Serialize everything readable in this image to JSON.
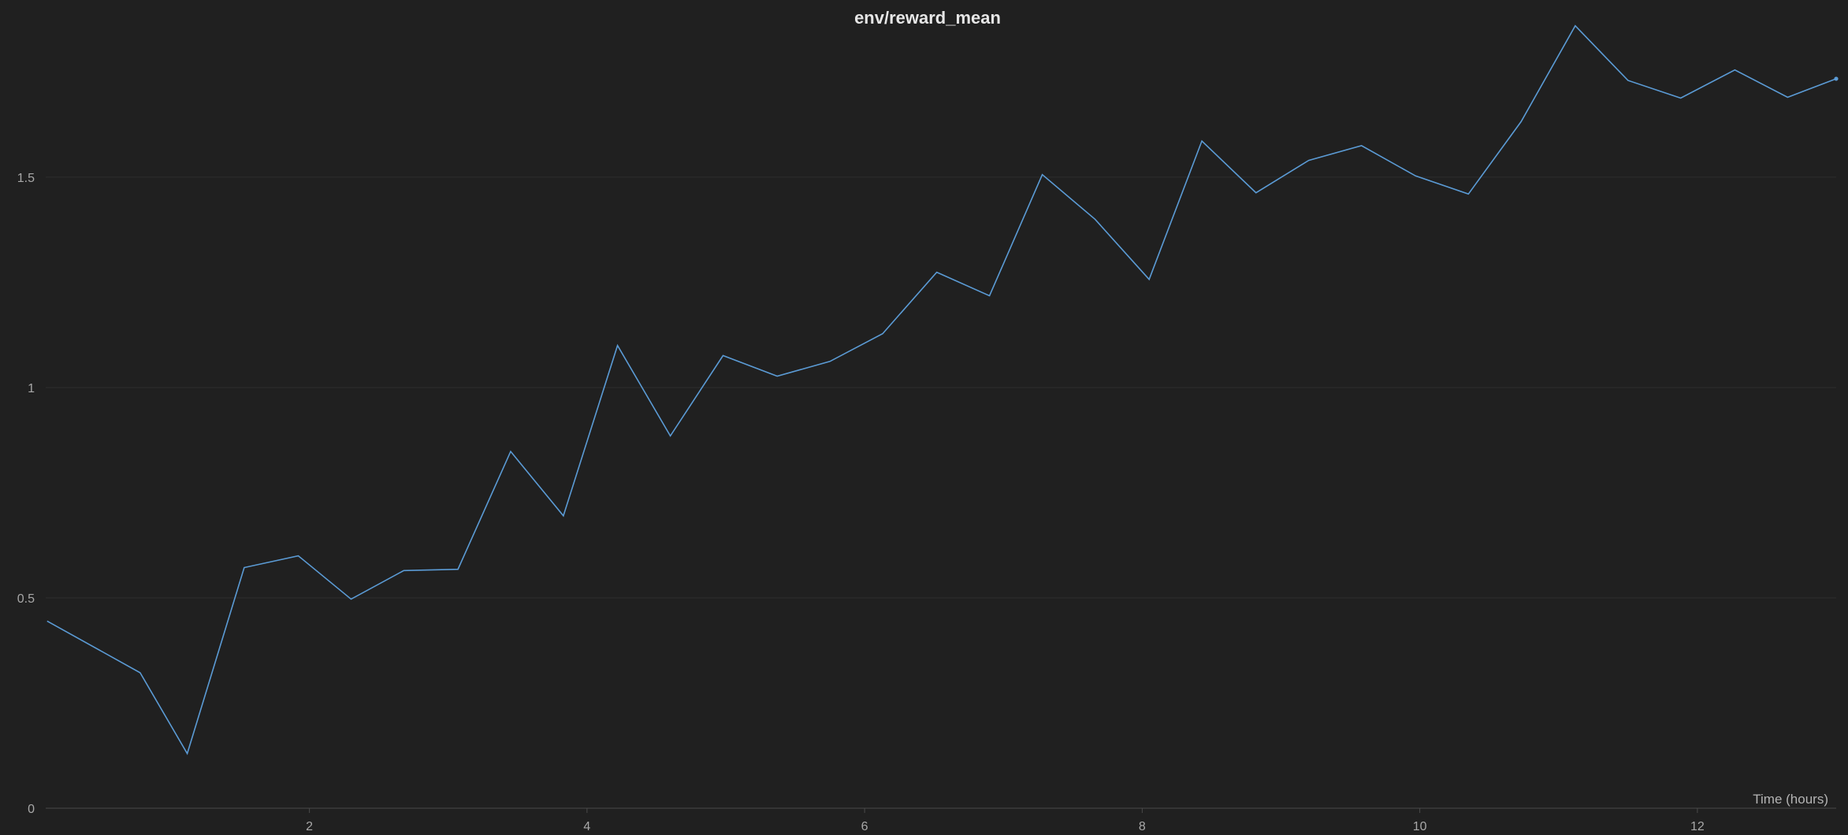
{
  "chart_data": {
    "type": "line",
    "title": "env/reward_mean",
    "xlabel": "Time (hours)",
    "ylabel": "",
    "xlim": [
      0.1,
      13.0
    ],
    "ylim": [
      0,
      1.88
    ],
    "x_ticks": [
      2,
      4,
      6,
      8,
      10,
      12
    ],
    "y_ticks": [
      0,
      0.5,
      1,
      1.5
    ],
    "x_tick_labels": [
      "2",
      "4",
      "6",
      "8",
      "10",
      "12"
    ],
    "y_tick_labels": [
      "0",
      "0.5",
      "1",
      "1.5"
    ],
    "grid": true,
    "legend": "none",
    "colors": {
      "background": "#202020",
      "line": "#5b9bd5",
      "grid": "#2e2e2e",
      "axis": "#4a4a4a"
    },
    "series": [
      {
        "x": [
          0.11,
          0.78,
          1.12,
          1.53,
          1.92,
          2.3,
          2.68,
          3.07,
          3.45,
          3.83,
          4.22,
          4.6,
          4.98,
          5.37,
          5.75,
          6.13,
          6.52,
          6.9,
          7.28,
          7.66,
          8.05,
          8.43,
          8.82,
          9.2,
          9.58,
          9.97,
          10.35,
          10.73,
          11.12,
          11.5,
          11.88,
          12.27,
          12.65,
          13.0
        ],
        "y": [
          0.445,
          0.322,
          0.13,
          0.572,
          0.6,
          0.497,
          0.565,
          0.568,
          0.848,
          0.695,
          1.1,
          0.885,
          1.076,
          1.027,
          1.062,
          1.128,
          1.274,
          1.218,
          1.506,
          1.4,
          1.257,
          1.586,
          1.463,
          1.54,
          1.575,
          1.503,
          1.46,
          1.632,
          1.86,
          1.73,
          1.688,
          1.755,
          1.69,
          1.734
        ]
      }
    ]
  }
}
